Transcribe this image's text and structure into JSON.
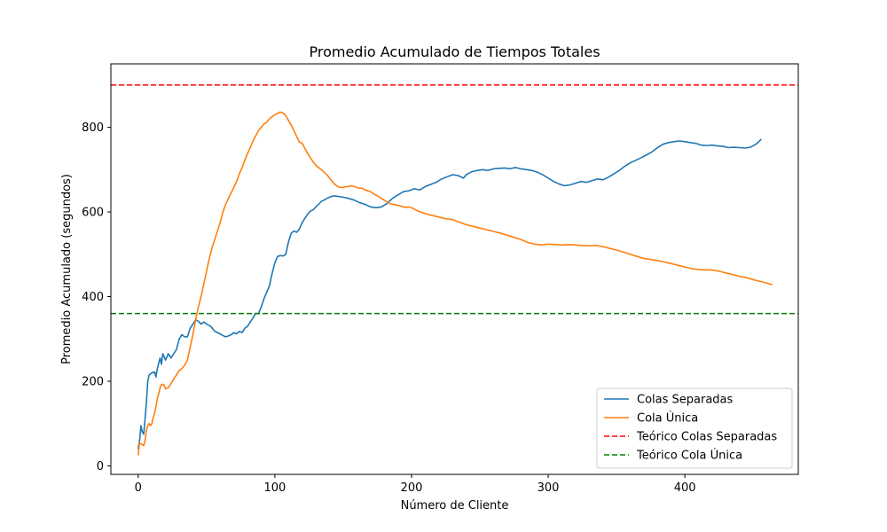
{
  "chart_data": {
    "type": "line",
    "title": "Promedio Acumulado de Tiempos Totales",
    "xlabel": "Número de Cliente",
    "ylabel": "Promedio Acumulado (segundos)",
    "xlim": [
      -20,
      483
    ],
    "ylim": [
      -20,
      950
    ],
    "xticks": [
      0,
      100,
      200,
      300,
      400
    ],
    "yticks": [
      0,
      200,
      400,
      600,
      800
    ],
    "grid": false,
    "legend_position": "lower-right",
    "series": [
      {
        "name": "Colas Separadas",
        "color": "#1f77b4",
        "style": "solid",
        "points": [
          [
            0,
            40
          ],
          [
            1,
            60
          ],
          [
            2,
            95
          ],
          [
            3,
            80
          ],
          [
            4,
            75
          ],
          [
            5,
            110
          ],
          [
            6,
            150
          ],
          [
            7,
            200
          ],
          [
            8,
            215
          ],
          [
            10,
            220
          ],
          [
            12,
            222
          ],
          [
            13,
            210
          ],
          [
            14,
            230
          ],
          [
            16,
            255
          ],
          [
            17,
            240
          ],
          [
            18,
            265
          ],
          [
            20,
            250
          ],
          [
            22,
            265
          ],
          [
            24,
            255
          ],
          [
            26,
            265
          ],
          [
            28,
            275
          ],
          [
            30,
            300
          ],
          [
            32,
            310
          ],
          [
            34,
            305
          ],
          [
            36,
            305
          ],
          [
            38,
            325
          ],
          [
            40,
            335
          ],
          [
            42,
            345
          ],
          [
            44,
            342
          ],
          [
            46,
            335
          ],
          [
            48,
            340
          ],
          [
            50,
            335
          ],
          [
            53,
            330
          ],
          [
            56,
            318
          ],
          [
            58,
            315
          ],
          [
            60,
            312
          ],
          [
            62,
            308
          ],
          [
            64,
            305
          ],
          [
            66,
            307
          ],
          [
            68,
            310
          ],
          [
            70,
            315
          ],
          [
            72,
            312
          ],
          [
            74,
            318
          ],
          [
            76,
            315
          ],
          [
            78,
            325
          ],
          [
            80,
            330
          ],
          [
            82,
            340
          ],
          [
            84,
            350
          ],
          [
            86,
            360
          ],
          [
            88,
            360
          ],
          [
            90,
            375
          ],
          [
            92,
            395
          ],
          [
            94,
            410
          ],
          [
            96,
            425
          ],
          [
            98,
            455
          ],
          [
            100,
            480
          ],
          [
            102,
            495
          ],
          [
            104,
            497
          ],
          [
            106,
            496
          ],
          [
            108,
            500
          ],
          [
            110,
            530
          ],
          [
            112,
            550
          ],
          [
            114,
            555
          ],
          [
            116,
            552
          ],
          [
            118,
            560
          ],
          [
            120,
            575
          ],
          [
            122,
            585
          ],
          [
            124,
            595
          ],
          [
            126,
            602
          ],
          [
            128,
            605
          ],
          [
            130,
            612
          ],
          [
            132,
            618
          ],
          [
            134,
            625
          ],
          [
            136,
            628
          ],
          [
            138,
            632
          ],
          [
            140,
            635
          ],
          [
            143,
            638
          ],
          [
            146,
            637
          ],
          [
            150,
            635
          ],
          [
            154,
            632
          ],
          [
            158,
            628
          ],
          [
            162,
            622
          ],
          [
            166,
            618
          ],
          [
            170,
            612
          ],
          [
            174,
            610
          ],
          [
            178,
            612
          ],
          [
            182,
            620
          ],
          [
            186,
            632
          ],
          [
            190,
            640
          ],
          [
            194,
            648
          ],
          [
            198,
            650
          ],
          [
            202,
            655
          ],
          [
            206,
            652
          ],
          [
            210,
            660
          ],
          [
            214,
            665
          ],
          [
            218,
            670
          ],
          [
            222,
            678
          ],
          [
            226,
            683
          ],
          [
            230,
            688
          ],
          [
            234,
            686
          ],
          [
            238,
            680
          ],
          [
            240,
            688
          ],
          [
            244,
            695
          ],
          [
            248,
            698
          ],
          [
            252,
            700
          ],
          [
            256,
            698
          ],
          [
            260,
            702
          ],
          [
            264,
            703
          ],
          [
            268,
            704
          ],
          [
            272,
            702
          ],
          [
            276,
            705
          ],
          [
            280,
            702
          ],
          [
            284,
            700
          ],
          [
            288,
            698
          ],
          [
            292,
            694
          ],
          [
            296,
            688
          ],
          [
            300,
            680
          ],
          [
            304,
            672
          ],
          [
            308,
            666
          ],
          [
            312,
            662
          ],
          [
            316,
            664
          ],
          [
            320,
            668
          ],
          [
            324,
            672
          ],
          [
            328,
            670
          ],
          [
            332,
            674
          ],
          [
            336,
            678
          ],
          [
            340,
            676
          ],
          [
            344,
            682
          ],
          [
            348,
            690
          ],
          [
            352,
            698
          ],
          [
            356,
            708
          ],
          [
            360,
            716
          ],
          [
            364,
            722
          ],
          [
            368,
            728
          ],
          [
            372,
            735
          ],
          [
            376,
            742
          ],
          [
            380,
            752
          ],
          [
            384,
            760
          ],
          [
            388,
            764
          ],
          [
            392,
            766
          ],
          [
            396,
            768
          ],
          [
            400,
            766
          ],
          [
            404,
            764
          ],
          [
            408,
            762
          ],
          [
            412,
            758
          ],
          [
            416,
            757
          ],
          [
            420,
            758
          ],
          [
            424,
            756
          ],
          [
            428,
            755
          ],
          [
            432,
            752
          ],
          [
            436,
            753
          ],
          [
            440,
            752
          ],
          [
            444,
            751
          ],
          [
            448,
            753
          ],
          [
            452,
            760
          ],
          [
            454,
            766
          ],
          [
            456,
            772
          ]
        ]
      },
      {
        "name": "Cola Única",
        "color": "#ff7f0e",
        "style": "solid",
        "points": [
          [
            0,
            25
          ],
          [
            1,
            55
          ],
          [
            2,
            52
          ],
          [
            3,
            50
          ],
          [
            4,
            48
          ],
          [
            5,
            60
          ],
          [
            6,
            85
          ],
          [
            7,
            95
          ],
          [
            8,
            100
          ],
          [
            9,
            95
          ],
          [
            10,
            100
          ],
          [
            11,
            115
          ],
          [
            12,
            125
          ],
          [
            13,
            140
          ],
          [
            14,
            160
          ],
          [
            15,
            170
          ],
          [
            16,
            185
          ],
          [
            17,
            192
          ],
          [
            18,
            193
          ],
          [
            19,
            190
          ],
          [
            20,
            182
          ],
          [
            22,
            185
          ],
          [
            24,
            195
          ],
          [
            26,
            205
          ],
          [
            28,
            215
          ],
          [
            30,
            225
          ],
          [
            32,
            230
          ],
          [
            34,
            238
          ],
          [
            36,
            250
          ],
          [
            38,
            280
          ],
          [
            40,
            310
          ],
          [
            42,
            345
          ],
          [
            44,
            375
          ],
          [
            46,
            400
          ],
          [
            48,
            430
          ],
          [
            50,
            460
          ],
          [
            52,
            490
          ],
          [
            54,
            515
          ],
          [
            56,
            535
          ],
          [
            58,
            555
          ],
          [
            60,
            575
          ],
          [
            62,
            600
          ],
          [
            64,
            618
          ],
          [
            66,
            632
          ],
          [
            68,
            645
          ],
          [
            70,
            658
          ],
          [
            72,
            672
          ],
          [
            74,
            690
          ],
          [
            76,
            705
          ],
          [
            78,
            722
          ],
          [
            80,
            738
          ],
          [
            82,
            752
          ],
          [
            84,
            768
          ],
          [
            86,
            780
          ],
          [
            88,
            792
          ],
          [
            90,
            800
          ],
          [
            92,
            808
          ],
          [
            94,
            812
          ],
          [
            96,
            820
          ],
          [
            98,
            825
          ],
          [
            100,
            830
          ],
          [
            102,
            833
          ],
          [
            104,
            836
          ],
          [
            106,
            834
          ],
          [
            108,
            828
          ],
          [
            110,
            816
          ],
          [
            112,
            805
          ],
          [
            114,
            792
          ],
          [
            116,
            778
          ],
          [
            118,
            765
          ],
          [
            120,
            762
          ],
          [
            122,
            750
          ],
          [
            124,
            738
          ],
          [
            126,
            728
          ],
          [
            128,
            718
          ],
          [
            130,
            710
          ],
          [
            132,
            705
          ],
          [
            134,
            700
          ],
          [
            136,
            694
          ],
          [
            138,
            688
          ],
          [
            140,
            680
          ],
          [
            142,
            672
          ],
          [
            144,
            665
          ],
          [
            146,
            660
          ],
          [
            148,
            658
          ],
          [
            150,
            658
          ],
          [
            152,
            660
          ],
          [
            154,
            660
          ],
          [
            156,
            662
          ],
          [
            158,
            660
          ],
          [
            160,
            658
          ],
          [
            162,
            656
          ],
          [
            164,
            656
          ],
          [
            166,
            652
          ],
          [
            168,
            650
          ],
          [
            170,
            648
          ],
          [
            172,
            643
          ],
          [
            174,
            640
          ],
          [
            176,
            636
          ],
          [
            178,
            632
          ],
          [
            180,
            628
          ],
          [
            182,
            624
          ],
          [
            184,
            620
          ],
          [
            186,
            618
          ],
          [
            188,
            617
          ],
          [
            190,
            616
          ],
          [
            192,
            614
          ],
          [
            194,
            612
          ],
          [
            196,
            611
          ],
          [
            198,
            612
          ],
          [
            200,
            610
          ],
          [
            205,
            602
          ],
          [
            210,
            596
          ],
          [
            215,
            592
          ],
          [
            220,
            588
          ],
          [
            225,
            584
          ],
          [
            230,
            582
          ],
          [
            235,
            576
          ],
          [
            240,
            570
          ],
          [
            245,
            566
          ],
          [
            250,
            562
          ],
          [
            255,
            558
          ],
          [
            260,
            554
          ],
          [
            265,
            550
          ],
          [
            270,
            545
          ],
          [
            275,
            540
          ],
          [
            280,
            535
          ],
          [
            285,
            528
          ],
          [
            290,
            524
          ],
          [
            295,
            522
          ],
          [
            300,
            524
          ],
          [
            305,
            523
          ],
          [
            310,
            522
          ],
          [
            315,
            523
          ],
          [
            320,
            522
          ],
          [
            325,
            521
          ],
          [
            330,
            520
          ],
          [
            335,
            521
          ],
          [
            340,
            518
          ],
          [
            345,
            514
          ],
          [
            350,
            510
          ],
          [
            355,
            505
          ],
          [
            360,
            500
          ],
          [
            365,
            495
          ],
          [
            370,
            490
          ],
          [
            375,
            488
          ],
          [
            380,
            485
          ],
          [
            385,
            482
          ],
          [
            390,
            478
          ],
          [
            395,
            474
          ],
          [
            400,
            470
          ],
          [
            405,
            466
          ],
          [
            410,
            464
          ],
          [
            415,
            463
          ],
          [
            420,
            463
          ],
          [
            425,
            460
          ],
          [
            430,
            456
          ],
          [
            435,
            452
          ],
          [
            440,
            448
          ],
          [
            445,
            445
          ],
          [
            450,
            440
          ],
          [
            455,
            436
          ],
          [
            460,
            432
          ],
          [
            462,
            430
          ],
          [
            464,
            428
          ]
        ]
      },
      {
        "name": "Teórico Colas Separadas",
        "color": "#ff0000",
        "style": "dashed",
        "y": 900
      },
      {
        "name": "Teórico Cola Única",
        "color": "#008000",
        "style": "dashed",
        "y": 360
      }
    ]
  }
}
